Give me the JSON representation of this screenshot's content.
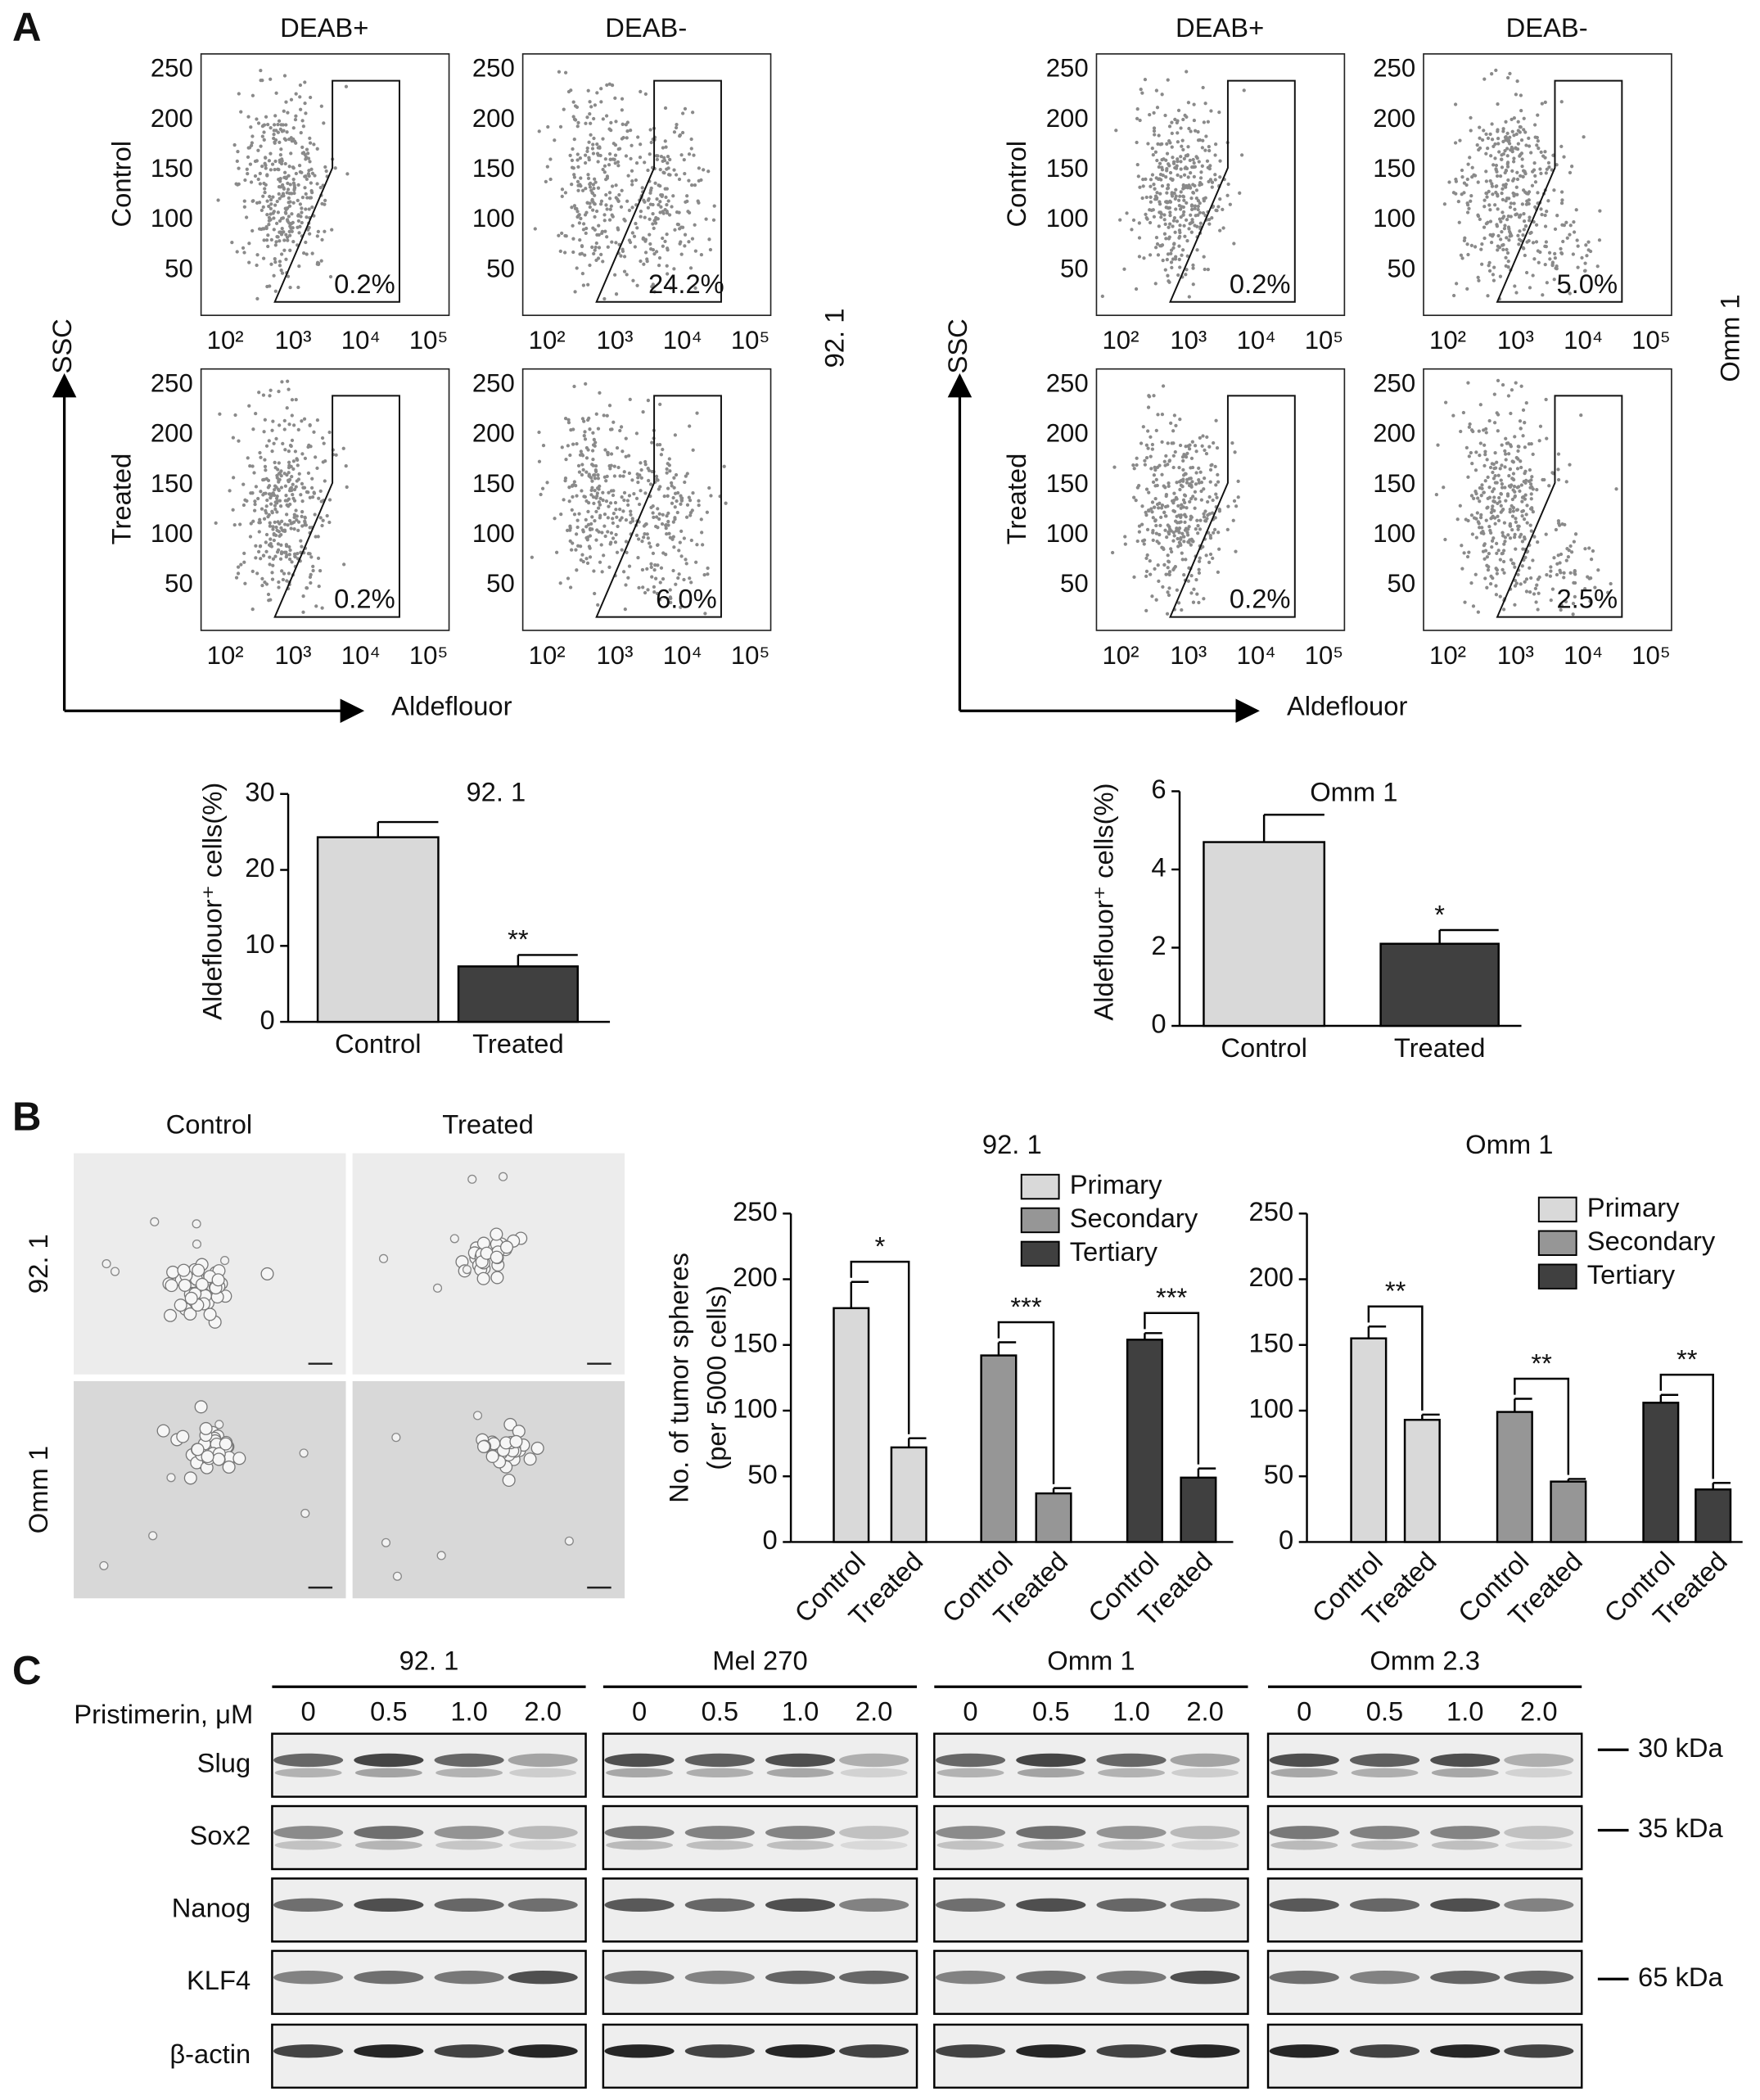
{
  "panel_labels": [
    "A",
    "B",
    "C"
  ],
  "flow_axes": {
    "xscale": "log",
    "xlim": [
      44,
      200000
    ],
    "xticks": [
      {
        "value": 100,
        "label": "10²"
      },
      {
        "value": 1000,
        "label": "10³"
      },
      {
        "value": 10000,
        "label": "10⁴"
      },
      {
        "value": 100000,
        "label": "10⁵"
      }
    ],
    "ylim": [
      5,
      266
    ],
    "yticks": [
      50,
      100,
      150,
      200,
      250
    ]
  },
  "flow_panels": [
    {
      "cell_line": "92. 1",
      "columns": [
        "DEAB+",
        "DEAB-"
      ],
      "rows": [
        "Control",
        "Treated"
      ],
      "gates": [
        [
          "0.2%",
          "24.2%"
        ],
        [
          "0.2%",
          "6.0%"
        ]
      ],
      "ylabel": "SSC",
      "xlabel": "Aldeflouor"
    },
    {
      "cell_line": "Omm 1",
      "columns": [
        "DEAB+",
        "DEAB-"
      ],
      "rows": [
        "Control",
        "Treated"
      ],
      "gates": [
        [
          "0.2%",
          "5.0%"
        ],
        [
          "0.2%",
          "2.5%"
        ]
      ],
      "ylabel": "SSC",
      "xlabel": "Aldeflouor"
    }
  ],
  "chart_data": [
    {
      "type": "bar",
      "title": "92. 1",
      "ylabel": "Aldeflouor⁺ cells(%)",
      "categories": [
        "Control",
        "Treated"
      ],
      "values": [
        24.3,
        7.3
      ],
      "errors": [
        2.0,
        1.5
      ],
      "colors": [
        "#d9d9d9",
        "#404040"
      ],
      "significance": [
        null,
        "**"
      ],
      "ylim": [
        0,
        30
      ],
      "yticks": [
        0,
        10,
        20,
        30
      ]
    },
    {
      "type": "bar",
      "title": "Omm 1",
      "ylabel": "Aldeflouor⁺ cells(%)",
      "categories": [
        "Control",
        "Treated"
      ],
      "values": [
        4.7,
        2.1
      ],
      "errors": [
        0.7,
        0.35
      ],
      "colors": [
        "#d9d9d9",
        "#404040"
      ],
      "significance": [
        null,
        "*"
      ],
      "ylim": [
        0,
        6
      ],
      "yticks": [
        0,
        2,
        4,
        6
      ]
    },
    {
      "type": "grouped-bar",
      "title": "92. 1",
      "ylabel": [
        "No. of tumor spheres",
        "(per 5000 cells)"
      ],
      "categories": [
        "Control",
        "Treated"
      ],
      "series": [
        {
          "name": "Primary",
          "color": "#d9d9d9",
          "values": [
            178,
            72
          ],
          "errors": [
            20,
            7
          ],
          "significance": "*"
        },
        {
          "name": "Secondary",
          "color": "#969696",
          "values": [
            142,
            37
          ],
          "errors": [
            10,
            4
          ],
          "significance": "***"
        },
        {
          "name": "Tertiary",
          "color": "#404040",
          "values": [
            154,
            49
          ],
          "errors": [
            5,
            7
          ],
          "significance": "***"
        }
      ],
      "ylim": [
        0,
        250
      ],
      "yticks": [
        0,
        50,
        100,
        150,
        200,
        250
      ]
    },
    {
      "type": "grouped-bar",
      "title": "Omm 1",
      "categories": [
        "Control",
        "Treated"
      ],
      "series": [
        {
          "name": "Primary",
          "color": "#d9d9d9",
          "values": [
            155,
            93
          ],
          "errors": [
            9,
            4
          ],
          "significance": "**"
        },
        {
          "name": "Secondary",
          "color": "#969696",
          "values": [
            99,
            46
          ],
          "errors": [
            10,
            2
          ],
          "significance": "**"
        },
        {
          "name": "Tertiary",
          "color": "#404040",
          "values": [
            106,
            40
          ],
          "errors": [
            6,
            5
          ],
          "significance": "**"
        }
      ],
      "ylim": [
        0,
        250
      ],
      "yticks": [
        0,
        50,
        100,
        150,
        200,
        250
      ]
    }
  ],
  "micrographs": {
    "columns": [
      "Control",
      "Treated"
    ],
    "rows": [
      "92. 1",
      "Omm 1"
    ]
  },
  "blot": {
    "treatment_label": "Pristimerin, μM",
    "doses": [
      "0",
      "0.5",
      "1.0",
      "2.0"
    ],
    "cell_lines": [
      "92. 1",
      "Mel 270",
      "Omm 1",
      "Omm 2.3"
    ],
    "proteins": [
      "Slug",
      "Sox2",
      "Nanog",
      "KLF4",
      "β-actin"
    ],
    "markers": [
      "30 kDa",
      "35 kDa",
      "65 kDa"
    ]
  }
}
